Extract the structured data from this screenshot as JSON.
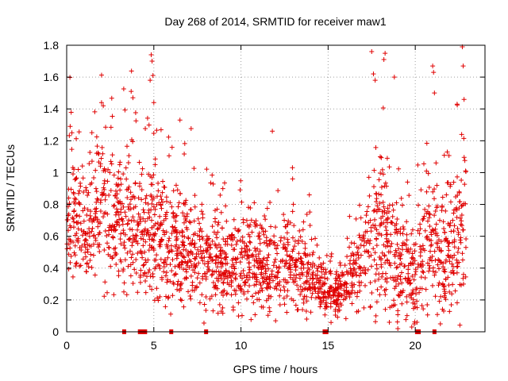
{
  "chart_data": {
    "type": "scatter",
    "title": "Day 268 of 2014, SRMTID for receiver maw1",
    "xlabel": "GPS time / hours",
    "ylabel": "SRMTID / TECUs",
    "xlim": [
      0,
      24
    ],
    "ylim": [
      0,
      1.8
    ],
    "x_ticks": [
      0,
      5,
      10,
      15,
      20
    ],
    "x_tick_labels": [
      "0",
      "5",
      "10",
      "15",
      "20"
    ],
    "y_ticks": [
      0,
      0.2,
      0.4,
      0.6,
      0.8,
      1,
      1.2,
      1.4,
      1.6,
      1.8
    ],
    "y_tick_labels": [
      "0",
      "0.2",
      "0.4",
      "0.6",
      "0.8",
      "1",
      "1.2",
      "1.4",
      "1.6",
      "1.8"
    ],
    "grid": true,
    "marker": "+",
    "color": "#e00000",
    "envelope_hours": [
      0,
      0.5,
      1,
      1.5,
      2,
      2.5,
      3,
      3.5,
      4,
      4.5,
      5,
      5.5,
      6,
      6.5,
      7,
      7.5,
      8,
      8.5,
      9,
      9.5,
      10,
      10.5,
      11,
      11.5,
      12,
      12.5,
      13,
      13.5,
      14,
      14.5,
      15,
      15.5,
      16,
      16.5,
      17,
      17.5,
      18,
      18.5,
      19,
      19.5,
      20,
      20.5,
      21,
      21.5,
      22,
      22.5,
      23
    ],
    "envelope_median": [
      0.7,
      0.68,
      0.62,
      0.7,
      0.78,
      0.72,
      0.68,
      0.72,
      0.62,
      0.6,
      0.7,
      0.55,
      0.5,
      0.5,
      0.52,
      0.48,
      0.45,
      0.45,
      0.42,
      0.4,
      0.42,
      0.45,
      0.4,
      0.42,
      0.4,
      0.42,
      0.4,
      0.38,
      0.35,
      0.3,
      0.22,
      0.25,
      0.32,
      0.38,
      0.45,
      0.6,
      0.62,
      0.5,
      0.42,
      0.4,
      0.35,
      0.48,
      0.55,
      0.5,
      0.45,
      0.55,
      0.6
    ],
    "envelope_spread": [
      0.28,
      0.25,
      0.22,
      0.25,
      0.3,
      0.28,
      0.26,
      0.3,
      0.25,
      0.25,
      0.3,
      0.22,
      0.2,
      0.2,
      0.2,
      0.18,
      0.18,
      0.18,
      0.17,
      0.16,
      0.17,
      0.18,
      0.16,
      0.16,
      0.16,
      0.17,
      0.16,
      0.15,
      0.13,
      0.1,
      0.08,
      0.09,
      0.11,
      0.13,
      0.18,
      0.28,
      0.3,
      0.26,
      0.22,
      0.2,
      0.18,
      0.25,
      0.28,
      0.26,
      0.24,
      0.28,
      0.3
    ],
    "peak_values": [
      {
        "x": 2.0,
        "y": 1.44
      },
      {
        "x": 2.1,
        "y": 1.42
      },
      {
        "x": 3.7,
        "y": 1.51
      },
      {
        "x": 3.8,
        "y": 1.47
      },
      {
        "x": 4.85,
        "y": 1.74
      },
      {
        "x": 4.9,
        "y": 1.7
      },
      {
        "x": 4.95,
        "y": 1.61
      },
      {
        "x": 5.0,
        "y": 1.44
      },
      {
        "x": 6.5,
        "y": 1.33
      },
      {
        "x": 11.8,
        "y": 1.26
      },
      {
        "x": 17.5,
        "y": 1.76
      },
      {
        "x": 17.6,
        "y": 1.62
      },
      {
        "x": 17.7,
        "y": 1.58
      },
      {
        "x": 18.2,
        "y": 1.71
      },
      {
        "x": 18.8,
        "y": 1.6
      },
      {
        "x": 21.0,
        "y": 1.67
      },
      {
        "x": 21.05,
        "y": 1.63
      },
      {
        "x": 21.1,
        "y": 1.5
      },
      {
        "x": 22.7,
        "y": 1.79
      },
      {
        "x": 22.75,
        "y": 1.67
      },
      {
        "x": 22.8,
        "y": 1.46
      },
      {
        "x": 22.4,
        "y": 1.43
      },
      {
        "x": 0.2,
        "y": 1.29
      },
      {
        "x": 0.3,
        "y": 1.25
      },
      {
        "x": 19.0,
        "y": 0.02
      },
      {
        "x": 19.8,
        "y": 0.03
      },
      {
        "x": 20.1,
        "y": 0.06
      }
    ],
    "zero_markers_x": [
      3.3,
      4.2,
      4.35,
      4.5,
      6.0,
      8.0,
      14.8,
      14.9,
      20.1,
      20.2,
      21.1
    ]
  }
}
